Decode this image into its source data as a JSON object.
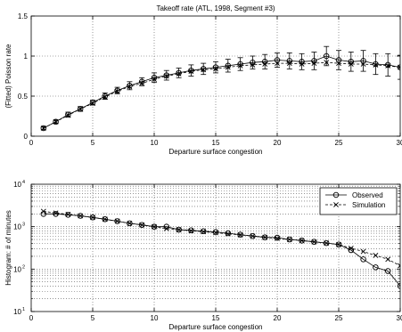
{
  "chart_data": [
    {
      "type": "line",
      "title": "Takeoff rate (ATL, 1998, Segment #3)",
      "xlabel": "Departure surface congestion",
      "ylabel": "(Fitted) Poisson rate",
      "xlim": [
        0,
        30
      ],
      "ylim": [
        0,
        1.5
      ],
      "xticks": [
        "0",
        "5",
        "10",
        "15",
        "20",
        "25",
        "30"
      ],
      "yticks": [
        "0",
        "0.5",
        "1",
        "1.5"
      ],
      "grid": true,
      "series": [
        {
          "marker": "circle",
          "line": "solid",
          "x": [
            1,
            2,
            3,
            4,
            5,
            6,
            7,
            8,
            9,
            10,
            11,
            12,
            13,
            14,
            15,
            16,
            17,
            18,
            19,
            20,
            21,
            22,
            23,
            24,
            25,
            26,
            27,
            28,
            29,
            30
          ],
          "values": [
            0.1,
            0.18,
            0.27,
            0.34,
            0.42,
            0.5,
            0.57,
            0.63,
            0.68,
            0.73,
            0.76,
            0.79,
            0.82,
            0.84,
            0.86,
            0.88,
            0.9,
            0.92,
            0.93,
            0.95,
            0.94,
            0.93,
            0.94,
            1.0,
            0.95,
            0.93,
            0.94,
            0.9,
            0.89,
            0.86
          ],
          "err": [
            0.02,
            0.02,
            0.03,
            0.03,
            0.03,
            0.04,
            0.04,
            0.05,
            0.05,
            0.06,
            0.06,
            0.06,
            0.07,
            0.07,
            0.07,
            0.08,
            0.08,
            0.08,
            0.09,
            0.09,
            0.1,
            0.1,
            0.11,
            0.12,
            0.12,
            0.12,
            0.13,
            0.13,
            0.14,
            0.15
          ]
        },
        {
          "marker": "x",
          "line": "dashed",
          "x": [
            1,
            2,
            3,
            4,
            5,
            6,
            7,
            8,
            9,
            10,
            11,
            12,
            13,
            14,
            15,
            16,
            17,
            18,
            19,
            20,
            21,
            22,
            23,
            24,
            25,
            26,
            27,
            28,
            29,
            30
          ],
          "values": [
            0.1,
            0.18,
            0.26,
            0.34,
            0.41,
            0.49,
            0.56,
            0.62,
            0.66,
            0.71,
            0.75,
            0.78,
            0.81,
            0.83,
            0.84,
            0.86,
            0.88,
            0.89,
            0.9,
            0.91,
            0.91,
            0.9,
            0.91,
            0.92,
            0.91,
            0.9,
            0.9,
            0.89,
            0.88,
            0.86
          ]
        }
      ]
    },
    {
      "type": "line",
      "title": "",
      "xlabel": "Departure surface congestion",
      "ylabel": "Histogram: # of minutes",
      "xlim": [
        0,
        30
      ],
      "ylim": [
        10,
        10000
      ],
      "yscale": "log",
      "xticks": [
        "0",
        "5",
        "10",
        "15",
        "20",
        "25",
        "30"
      ],
      "yticks": [
        "10",
        "10",
        "10",
        "10"
      ],
      "yticks_exponent": [
        "1",
        "2",
        "3",
        "4"
      ],
      "grid": true,
      "legend_position": "top-right",
      "series": [
        {
          "name": "Observed",
          "marker": "circle",
          "line": "solid",
          "x": [
            1,
            2,
            3,
            4,
            5,
            6,
            7,
            8,
            9,
            10,
            11,
            12,
            13,
            14,
            15,
            16,
            17,
            18,
            19,
            20,
            21,
            22,
            23,
            24,
            25,
            26,
            27,
            28,
            29,
            30
          ],
          "values": [
            2000,
            2000,
            1900,
            1800,
            1650,
            1500,
            1350,
            1200,
            1100,
            1000,
            1000,
            850,
            820,
            780,
            750,
            700,
            650,
            600,
            560,
            550,
            500,
            470,
            440,
            410,
            380,
            280,
            170,
            110,
            90,
            40
          ]
        },
        {
          "name": "Simulation",
          "marker": "x",
          "line": "dashed",
          "x": [
            1,
            2,
            3,
            4,
            5,
            6,
            7,
            8,
            9,
            10,
            11,
            12,
            13,
            14,
            15,
            16,
            17,
            18,
            19,
            20,
            21,
            22,
            23,
            24,
            25,
            26,
            27,
            28,
            29,
            30
          ],
          "values": [
            2300,
            2100,
            1950,
            1800,
            1650,
            1500,
            1350,
            1200,
            1100,
            1000,
            900,
            850,
            800,
            760,
            720,
            680,
            640,
            600,
            560,
            530,
            500,
            470,
            440,
            410,
            380,
            310,
            260,
            210,
            170,
            120
          ]
        }
      ]
    }
  ]
}
